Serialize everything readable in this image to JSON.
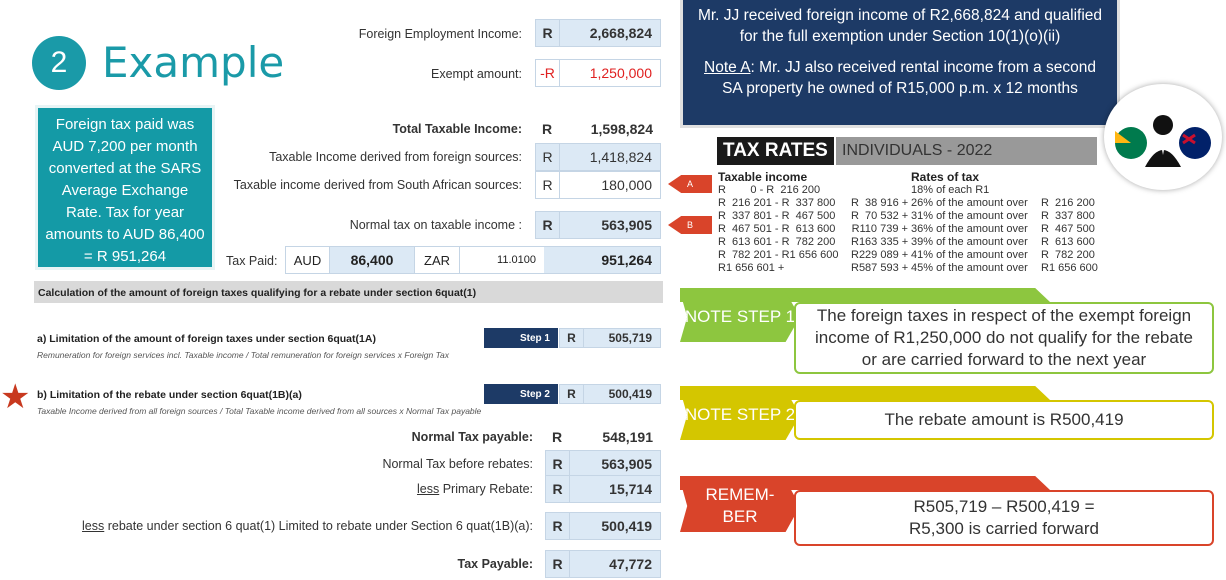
{
  "header": {
    "number": "2",
    "title": "Example"
  },
  "info_box": "Foreign tax paid was AUD 7,200 per month converted at the SARS Average Exchange Rate. Tax for year amounts to AUD 86,400 = R 951,264",
  "calc": {
    "foreign_income": {
      "label": "Foreign Employment Income:",
      "currency": "R",
      "value": "2,668,824"
    },
    "exempt": {
      "label": "Exempt amount:",
      "currency": "-R",
      "value": "1,250,000"
    },
    "total_taxable": {
      "label": "Total Taxable Income:",
      "currency": "R",
      "value": "1,598,824"
    },
    "foreign_sources": {
      "label": "Taxable Income derived from foreign sources:",
      "currency": "R",
      "value": "1,418,824"
    },
    "sa_sources": {
      "label": "Taxable income derived from South African sources:",
      "currency": "R",
      "value": "180,000"
    },
    "normal_tax": {
      "label": "Normal tax on taxable income :",
      "currency": "R",
      "value": "563,905"
    },
    "tax_paid": {
      "label": "Tax Paid:",
      "aud_label": "AUD",
      "aud": "86,400",
      "zar_label": "ZAR",
      "rate": "11.0100",
      "zar": "951,264"
    },
    "section_header": "Calculation of the amount of foreign taxes qualifying for a rebate under section 6quat(1)",
    "step_a": {
      "title": "a) Limitation of the amount of foreign taxes under section 6quat(1A)",
      "formula": "Remuneration for foreign services incl. Taxable income / Total remuneration for foreign services x Foreign Tax",
      "step": "Step 1",
      "currency": "R",
      "value": "505,719"
    },
    "step_b": {
      "title": "b) Limitation of the rebate under section 6quat(1B)(a)",
      "formula": "Taxable Income derived from all foreign sources / Total Taxable income derived from all sources x Normal Tax payable",
      "step": "Step 2",
      "currency": "R",
      "value": "500,419"
    },
    "normal_payable": {
      "label": "Normal Tax payable:",
      "currency": "R",
      "value": "548,191"
    },
    "before_rebates": {
      "label": "Normal Tax before rebates:",
      "currency": "R",
      "value": "563,905"
    },
    "primary_rebate": {
      "label_u": "less",
      "label": " Primary Rebate:",
      "currency": "R",
      "value": "15,714"
    },
    "less_rebate": {
      "label_u": "less",
      "label": " rebate under section 6 quat(1) Limited to rebate under Section 6 quat(1B)(a):",
      "currency": "R",
      "value": "500,419"
    },
    "tax_payable": {
      "label": "Tax Payable:",
      "currency": "R",
      "value": "47,772"
    }
  },
  "top_box": {
    "line1": "Mr. JJ received foreign income of R2,668,824 and qualified for the full exemption under Section 10(1)(o)(ii)",
    "note_label": "Note A",
    "note_text": ": Mr. JJ also received rental income from a second SA property he owned of R15,000 p.m. x 12 months"
  },
  "tax_rates": {
    "title": "TAX RATES",
    "subtitle": "INDIVIDUALS - 2022",
    "col1": "Taxable income",
    "col2": "Rates of tax",
    "rows": [
      [
        "R        0 - R  216 200",
        "",
        "18% of each R1",
        ""
      ],
      [
        "R  216 201 - R  337 800",
        "R  38 916 + ",
        "26% of the amount over",
        "R  216 200"
      ],
      [
        "R  337 801 - R  467 500",
        "R  70 532 + ",
        "31% of the amount over",
        "R  337 800"
      ],
      [
        "R  467 501 - R  613 600",
        "R110 739 + ",
        "36% of the amount over",
        "R  467 500"
      ],
      [
        "R  613 601 - R  782 200",
        "R163 335 + ",
        "39% of the amount over",
        "R  613 600"
      ],
      [
        "R  782 201 - R1 656 600",
        "R229 089 + ",
        "41% of the amount over",
        "R  782 200"
      ],
      [
        "R1 656 601 +",
        "R587 593 + ",
        "45% of the amount over",
        "R1 656 600"
      ]
    ]
  },
  "arrows": [
    "A",
    "B"
  ],
  "notes": [
    {
      "tag": "NOTE STEP 1",
      "text": "The foreign taxes in respect of the exempt foreign income of R1,250,000 do not qualify for the rebate or are carried forward to the next year",
      "color": "#8dc63f"
    },
    {
      "tag": "NOTE STEP 2",
      "text": "The rebate amount is R500,419",
      "color": "#d4c600"
    },
    {
      "tag": "REMEM-BER",
      "text": "R505,719 – R500,419 = R5,300 is carried forward",
      "color": "#d9442a"
    }
  ],
  "colors": {
    "teal": "#1a9aa8",
    "navy": "#1d3a66"
  }
}
